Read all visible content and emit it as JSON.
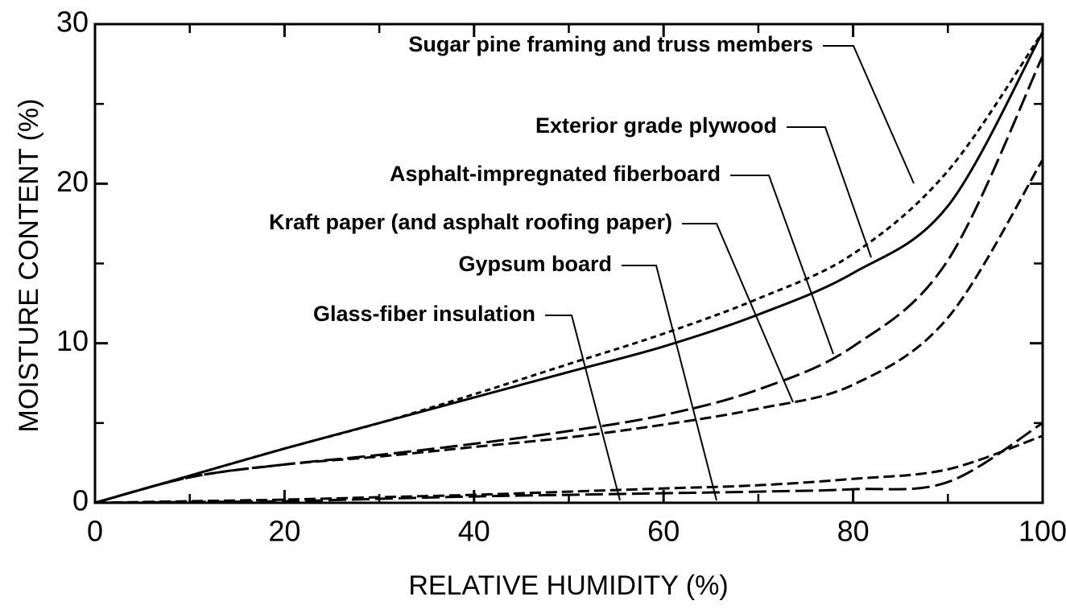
{
  "chart_data": {
    "type": "line",
    "xlabel": "RELATIVE  HUMIDITY (%)",
    "ylabel": "MOISTURE  CONTENT (%)",
    "x": [
      0,
      10,
      20,
      30,
      40,
      50,
      60,
      70,
      80,
      90,
      100
    ],
    "xlim": [
      0,
      100
    ],
    "ylim": [
      0,
      30
    ],
    "xticks": [
      0,
      20,
      40,
      60,
      80,
      100
    ],
    "yticks": [
      0,
      10,
      20,
      30
    ],
    "xticks_minor": [
      10,
      30,
      50,
      70,
      90
    ],
    "yticks_minor": [
      5,
      15,
      25
    ],
    "series": [
      {
        "name": "Sugar pine framing and truss members",
        "color": "#000000",
        "style": "short-dash",
        "values": [
          0,
          1.7,
          3.4,
          5.0,
          6.8,
          8.7,
          10.6,
          12.8,
          15.6,
          20.8,
          29.5
        ]
      },
      {
        "name": "Exterior grade plywood",
        "color": "#000000",
        "style": "solid",
        "values": [
          0,
          1.7,
          3.4,
          5.0,
          6.6,
          8.2,
          9.8,
          11.8,
          14.4,
          18.6,
          29.5
        ]
      },
      {
        "name": "Asphalt-impregnated fiberboard",
        "color": "#000000",
        "style": "long-dash",
        "values": [
          0,
          1.6,
          2.4,
          3.0,
          3.7,
          4.5,
          5.5,
          7.1,
          9.8,
          15.2,
          28.0
        ]
      },
      {
        "name": "Kraft paper (and asphalt roofing paper)",
        "color": "#000000",
        "style": "dash",
        "values": [
          0,
          1.6,
          2.4,
          2.9,
          3.5,
          4.1,
          4.9,
          5.9,
          7.4,
          11.6,
          21.5
        ]
      },
      {
        "name": "Gypsum board",
        "color": "#000000",
        "style": "dash",
        "values": [
          0,
          0.1,
          0.2,
          0.35,
          0.5,
          0.7,
          0.9,
          1.1,
          1.5,
          2.1,
          4.2
        ]
      },
      {
        "name": "Glass-fiber insulation",
        "color": "#000000",
        "style": "long-dash",
        "values": [
          0,
          0.05,
          0.1,
          0.25,
          0.4,
          0.5,
          0.6,
          0.7,
          0.85,
          1.3,
          5.0
        ]
      }
    ]
  }
}
